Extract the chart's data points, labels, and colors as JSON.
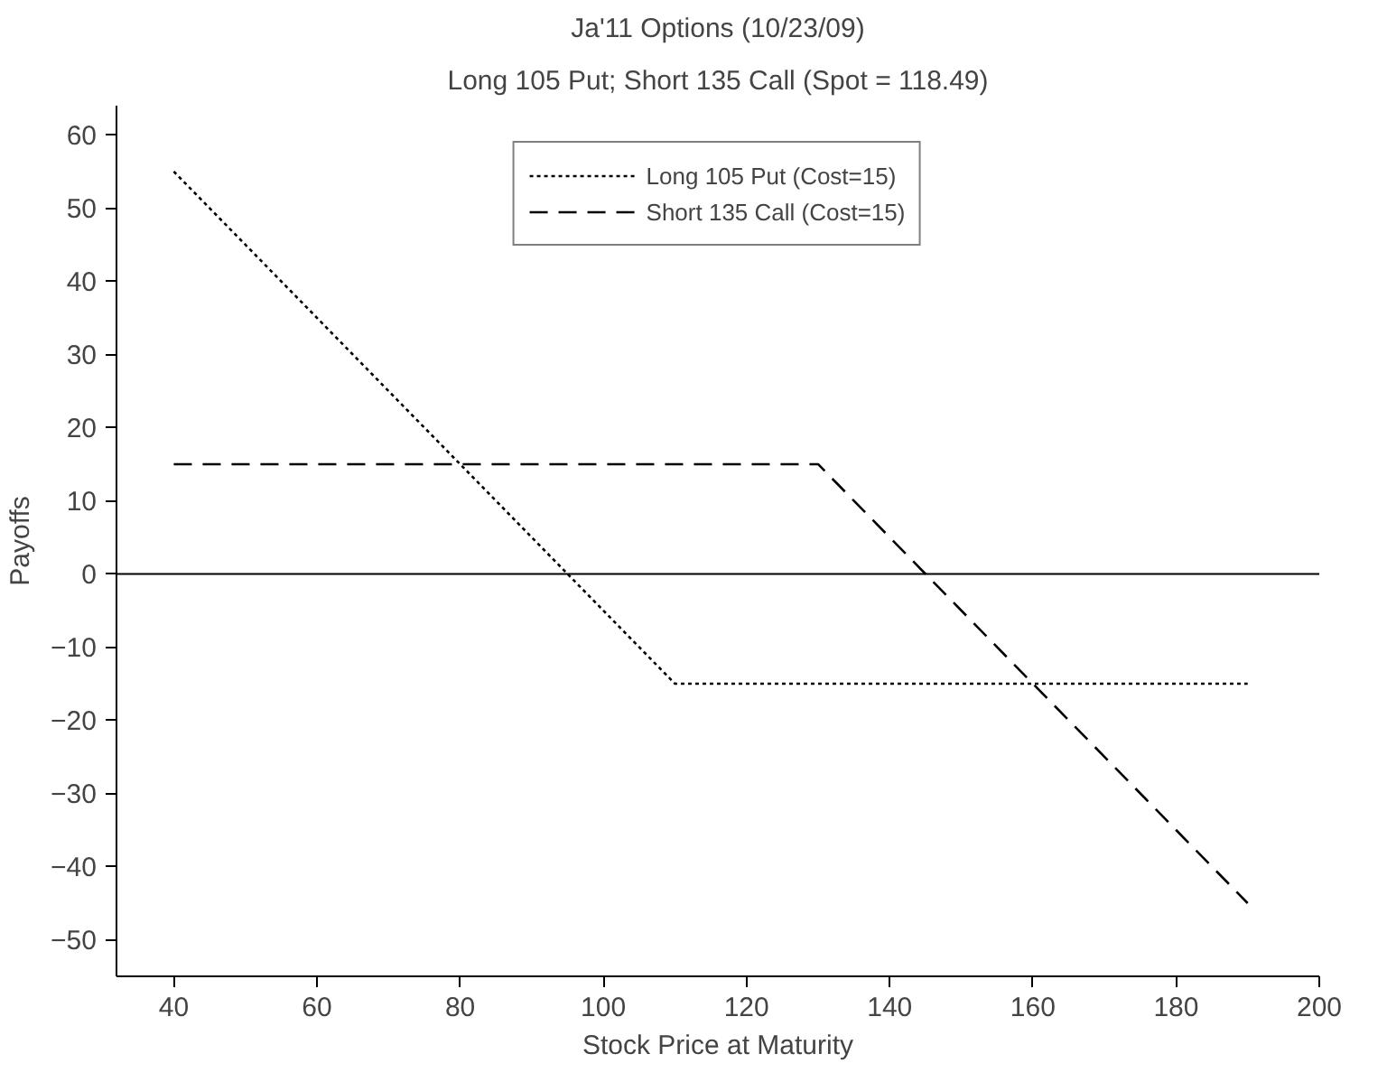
{
  "chart_data": {
    "type": "line",
    "title": "Ja'11 Options (10/23/09)",
    "subtitle": "Long 105 Put; Short 135 Call (Spot = 118.49)",
    "xlabel": "Stock Price at Maturity",
    "ylabel": "Payoffs",
    "series": [
      {
        "name": "Long 105 Put (Cost=15)",
        "color": "#000000",
        "line_style": "dotted",
        "x": [
          40,
          110,
          190
        ],
        "values": [
          55,
          -15,
          -15
        ]
      },
      {
        "name": "Short 135 Call (Cost=15)",
        "color": "#000000",
        "line_style": "dashed",
        "x": [
          40,
          130,
          190
        ],
        "values": [
          15,
          15,
          -45
        ]
      }
    ],
    "xlim": [
      32,
      200
    ],
    "ylim": [
      -55,
      64
    ],
    "xticks": [
      40,
      60,
      80,
      100,
      120,
      140,
      160,
      180,
      200
    ],
    "yticks": [
      -50,
      -40,
      -30,
      -20,
      -10,
      0,
      10,
      20,
      30,
      40,
      50,
      60
    ],
    "ref_lines": [
      {
        "axis": "y",
        "value": 0,
        "color": "#000000",
        "line_style": "solid"
      }
    ],
    "grid": false,
    "legend": "top",
    "marker": "none"
  }
}
